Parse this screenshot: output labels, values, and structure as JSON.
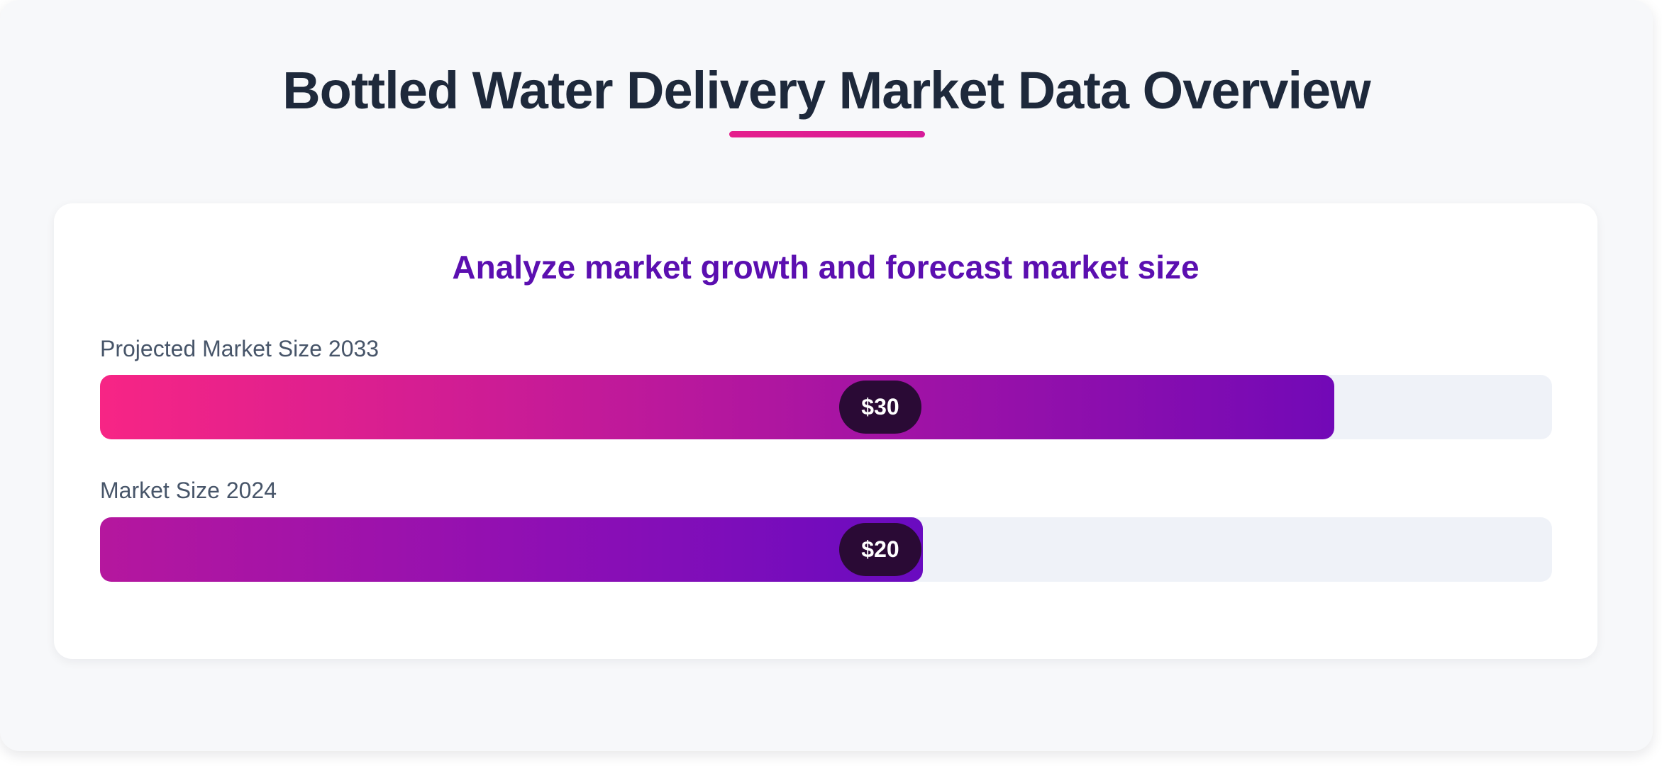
{
  "title": "Bottled Water Delivery Market Data Overview",
  "subtitle": "Analyze market growth and forecast market size",
  "colors": {
    "title": "#1e293b",
    "accent_underline": "#e51f8c",
    "subtitle": "#5b0fb0",
    "bar_gradient_start": "#f72585",
    "bar_gradient_end": "#7209b7",
    "track": "#eff2f8",
    "value_pill": "#2a0a35"
  },
  "chart_data": {
    "type": "bar",
    "orientation": "horizontal",
    "title": "Bottled Water Delivery Market Data Overview",
    "subtitle": "Analyze market growth and forecast market size",
    "categories": [
      "Projected Market Size 2033",
      "Market Size 2024"
    ],
    "values": [
      30,
      20
    ],
    "value_labels": [
      "$30",
      "$20"
    ],
    "xlim": [
      0,
      35.3
    ],
    "grid": false,
    "legend": "none"
  }
}
